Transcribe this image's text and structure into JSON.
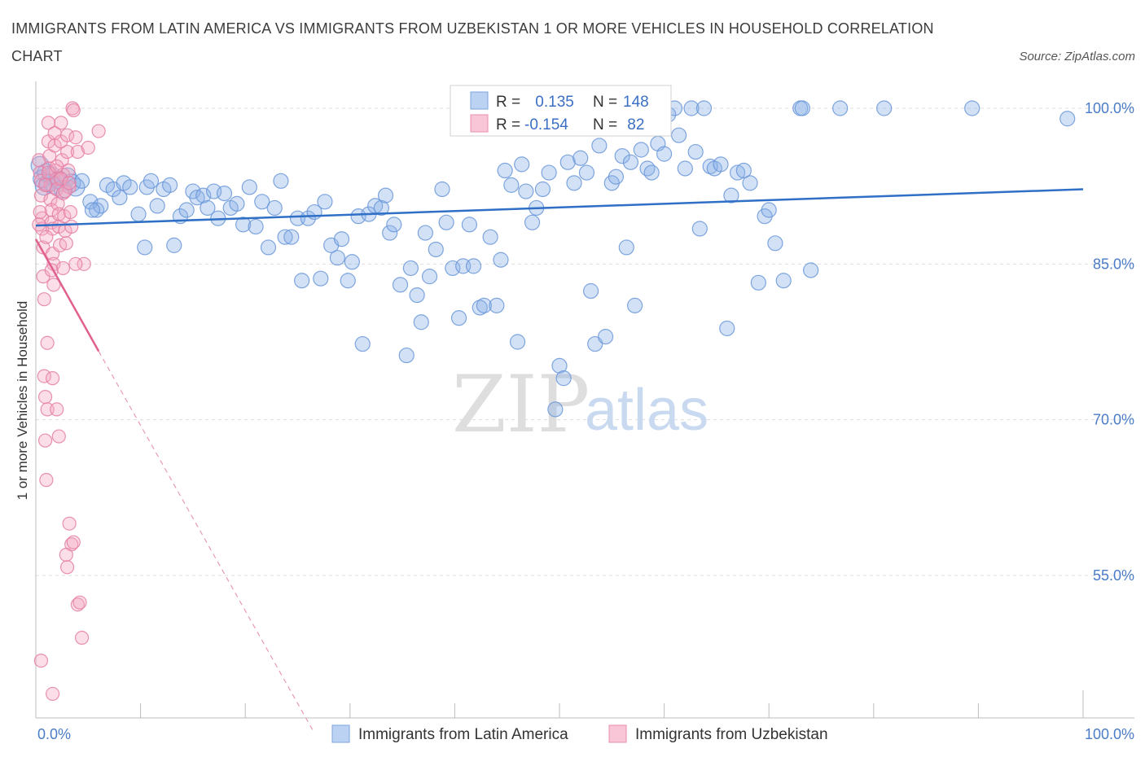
{
  "title": "IMMIGRANTS FROM LATIN AMERICA VS IMMIGRANTS FROM UZBEKISTAN 1 OR MORE VEHICLES IN HOUSEHOLD CORRELATION CHART",
  "source": "Source: ZipAtlas.com",
  "watermark": {
    "zip": "ZIP",
    "atlas": "atlas"
  },
  "chart_data": {
    "type": "scatter",
    "title": "IMMIGRANTS FROM LATIN AMERICA VS IMMIGRANTS FROM UZBEKISTAN 1 OR MORE VEHICLES IN HOUSEHOLD CORRELATION CHART",
    "xlabel": "",
    "ylabel": "1 or more Vehicles in Household",
    "xlim": [
      0,
      100
    ],
    "ylim": [
      40,
      100
    ],
    "x_tick_labels": [
      "0.0%",
      "100.0%"
    ],
    "y_ticks": [
      {
        "value": 100,
        "label": "100.0%"
      },
      {
        "value": 85,
        "label": "85.0%"
      },
      {
        "value": 70,
        "label": "70.0%"
      },
      {
        "value": 55,
        "label": "55.0%"
      }
    ],
    "stats": [
      {
        "r_label": "R =",
        "r": " 0.135",
        "n_label": "N =",
        "n": "148"
      },
      {
        "r_label": "R =",
        "r": "-0.154",
        "n_label": "N =",
        "n": " 82"
      }
    ],
    "series": [
      {
        "name": "Immigrants from Latin America",
        "color": "#8ab0e8",
        "stroke": "#6a96d8",
        "trend": {
          "x": [
            0,
            100
          ],
          "y": [
            88.7,
            92.2
          ],
          "color": "#2f6fc6"
        },
        "points": [
          [
            0.4,
            94.5
          ],
          [
            0.6,
            93.2
          ],
          [
            0.8,
            92.5
          ],
          [
            1,
            93.8
          ],
          [
            1.2,
            92.8
          ],
          [
            1.5,
            93.5
          ],
          [
            1.8,
            92.6
          ],
          [
            2.2,
            93.1
          ],
          [
            2.6,
            92.2
          ],
          [
            3,
            93.4
          ],
          [
            3.4,
            92.8
          ],
          [
            3.8,
            92.4
          ],
          [
            4.4,
            93.0
          ],
          [
            5.2,
            91.0
          ],
          [
            5.8,
            90.2
          ],
          [
            6.2,
            90.6
          ],
          [
            6.8,
            92.6
          ],
          [
            7.4,
            92.2
          ],
          [
            8,
            91.4
          ],
          [
            8.4,
            92.8
          ],
          [
            9,
            92.4
          ],
          [
            9.8,
            89.8
          ],
          [
            10.4,
            86.6
          ],
          [
            10.6,
            92.4
          ],
          [
            11,
            93.0
          ],
          [
            11.6,
            90.6
          ],
          [
            12.2,
            92.2
          ],
          [
            12.8,
            92.6
          ],
          [
            13.2,
            86.8
          ],
          [
            13.8,
            89.6
          ],
          [
            14.4,
            90.2
          ],
          [
            15,
            92.0
          ],
          [
            15.4,
            91.4
          ],
          [
            16,
            91.6
          ],
          [
            16.4,
            90.4
          ],
          [
            17,
            92.0
          ],
          [
            17.4,
            89.4
          ],
          [
            18,
            91.8
          ],
          [
            18.6,
            90.4
          ],
          [
            19.2,
            90.8
          ],
          [
            19.8,
            88.8
          ],
          [
            20.4,
            92.4
          ],
          [
            21,
            88.6
          ],
          [
            21.6,
            91.0
          ],
          [
            22.2,
            86.6
          ],
          [
            22.8,
            90.4
          ],
          [
            23.4,
            93.0
          ],
          [
            23.8,
            87.6
          ],
          [
            24.4,
            87.6
          ],
          [
            25,
            89.4
          ],
          [
            25.4,
            83.4
          ],
          [
            26,
            89.4
          ],
          [
            26.6,
            90.0
          ],
          [
            27.2,
            83.6
          ],
          [
            27.6,
            91.0
          ],
          [
            28.2,
            86.8
          ],
          [
            28.8,
            85.6
          ],
          [
            29.2,
            87.4
          ],
          [
            29.8,
            83.4
          ],
          [
            30.2,
            85.2
          ],
          [
            30.8,
            89.6
          ],
          [
            31.2,
            77.3
          ],
          [
            31.8,
            89.8
          ],
          [
            32.4,
            90.6
          ],
          [
            33.0,
            90.4
          ],
          [
            33.4,
            91.6
          ],
          [
            33.8,
            88.0
          ],
          [
            34.2,
            88.8
          ],
          [
            34.8,
            83.0
          ],
          [
            35.4,
            76.2
          ],
          [
            35.8,
            84.6
          ],
          [
            36.4,
            82.0
          ],
          [
            36.8,
            79.4
          ],
          [
            37.2,
            88.0
          ],
          [
            37.6,
            83.8
          ],
          [
            38.2,
            86.4
          ],
          [
            38.8,
            92.2
          ],
          [
            39.2,
            89.0
          ],
          [
            39.8,
            84.6
          ],
          [
            40.4,
            79.8
          ],
          [
            40.8,
            84.8
          ],
          [
            41.4,
            88.8
          ],
          [
            41.8,
            84.8
          ],
          [
            42.4,
            80.8
          ],
          [
            42.8,
            81.0
          ],
          [
            43.4,
            87.6
          ],
          [
            44,
            81.0
          ],
          [
            44.4,
            85.4
          ],
          [
            44.8,
            94.0
          ],
          [
            45.4,
            92.6
          ],
          [
            46,
            77.5
          ],
          [
            46.4,
            94.6
          ],
          [
            46.8,
            92.0
          ],
          [
            47.4,
            89.0
          ],
          [
            47.8,
            90.4
          ],
          [
            48.4,
            92.2
          ],
          [
            49,
            93.8
          ],
          [
            49.6,
            71.0
          ],
          [
            50,
            75.2
          ],
          [
            50.4,
            74.0
          ],
          [
            50.8,
            94.8
          ],
          [
            51.4,
            92.8
          ],
          [
            52,
            95.2
          ],
          [
            52.6,
            93.8
          ],
          [
            53,
            82.4
          ],
          [
            53.4,
            77.3
          ],
          [
            53.8,
            96.4
          ],
          [
            54.4,
            78.0
          ],
          [
            55,
            92.8
          ],
          [
            55.4,
            93.4
          ],
          [
            56,
            95.4
          ],
          [
            56.4,
            86.6
          ],
          [
            56.8,
            94.8
          ],
          [
            57.2,
            81.0
          ],
          [
            57.8,
            96.0
          ],
          [
            58.4,
            94.2
          ],
          [
            58.8,
            93.8
          ],
          [
            59.4,
            96.6
          ],
          [
            60,
            95.6
          ],
          [
            60.4,
            99.4
          ],
          [
            61,
            100
          ],
          [
            61.4,
            97.4
          ],
          [
            62,
            94.2
          ],
          [
            62.6,
            100
          ],
          [
            63,
            95.8
          ],
          [
            63.4,
            88.4
          ],
          [
            63.8,
            100
          ],
          [
            64.4,
            94.4
          ],
          [
            64.8,
            94.2
          ],
          [
            65.4,
            94.6
          ],
          [
            66,
            78.8
          ],
          [
            66.4,
            91.6
          ],
          [
            67,
            93.8
          ],
          [
            67.6,
            94.0
          ],
          [
            68.2,
            92.8
          ],
          [
            69,
            83.2
          ],
          [
            69.6,
            89.6
          ],
          [
            70,
            90.2
          ],
          [
            70.6,
            87.0
          ],
          [
            71.4,
            83.4
          ],
          [
            73,
            100
          ],
          [
            73.2,
            100
          ],
          [
            74,
            84.4
          ],
          [
            76.8,
            100
          ],
          [
            81,
            100
          ],
          [
            89.4,
            100
          ],
          [
            98.5,
            99.0
          ],
          [
            5.4,
            90.2
          ]
        ]
      },
      {
        "name": "Immigrants from Uzbekistan",
        "color": "#f4a7c0",
        "stroke": "#e57ea3",
        "trend": {
          "x": [
            0,
            6
          ],
          "y": [
            87.4,
            76.6
          ],
          "color": "#e0608e"
        },
        "trend_extension": {
          "x": [
            6,
            26.5
          ],
          "y": [
            76.6,
            40
          ],
          "color": "#e89ab6"
        },
        "points": [
          [
            0.3,
            95.0
          ],
          [
            0.4,
            93.8
          ],
          [
            0.5,
            93.0
          ],
          [
            0.5,
            91.6
          ],
          [
            0.6,
            89.4
          ],
          [
            0.6,
            88.4
          ],
          [
            0.7,
            86.6
          ],
          [
            0.7,
            83.8
          ],
          [
            0.8,
            81.6
          ],
          [
            0.8,
            74.2
          ],
          [
            0.9,
            72.2
          ],
          [
            0.9,
            68.0
          ],
          [
            1.0,
            64.2
          ],
          [
            1.1,
            77.4
          ],
          [
            1.1,
            71.0
          ],
          [
            1.2,
            98.6
          ],
          [
            1.2,
            96.8
          ],
          [
            1.3,
            95.4
          ],
          [
            1.3,
            94.2
          ],
          [
            1.4,
            92.6
          ],
          [
            1.4,
            91.2
          ],
          [
            1.5,
            90.2
          ],
          [
            1.5,
            89.0
          ],
          [
            1.6,
            88.4
          ],
          [
            1.6,
            86.0
          ],
          [
            1.7,
            85.0
          ],
          [
            1.7,
            83.0
          ],
          [
            1.8,
            97.6
          ],
          [
            1.8,
            96.4
          ],
          [
            1.9,
            94.0
          ],
          [
            2.0,
            93.2
          ],
          [
            2.0,
            92.2
          ],
          [
            2.1,
            90.8
          ],
          [
            2.2,
            89.8
          ],
          [
            2.2,
            88.6
          ],
          [
            2.3,
            86.8
          ],
          [
            2.4,
            98.6
          ],
          [
            2.4,
            96.8
          ],
          [
            2.5,
            95.0
          ],
          [
            2.6,
            93.6
          ],
          [
            2.6,
            91.8
          ],
          [
            2.7,
            89.6
          ],
          [
            2.8,
            88.2
          ],
          [
            2.9,
            87.0
          ],
          [
            3.0,
            97.4
          ],
          [
            3.0,
            95.8
          ],
          [
            3.1,
            94.0
          ],
          [
            3.2,
            92.4
          ],
          [
            3.3,
            90.0
          ],
          [
            3.4,
            88.6
          ],
          [
            3.5,
            100
          ],
          [
            3.6,
            99.8
          ],
          [
            3.8,
            97.2
          ],
          [
            4.0,
            95.8
          ],
          [
            3.2,
            60.0
          ],
          [
            3.4,
            58.0
          ],
          [
            2.9,
            57.0
          ],
          [
            3.0,
            55.8
          ],
          [
            2.2,
            68.4
          ],
          [
            2.0,
            71.0
          ],
          [
            1.6,
            74.0
          ],
          [
            4.0,
            52.2
          ],
          [
            4.2,
            52.4
          ],
          [
            4.4,
            49.0
          ],
          [
            0.5,
            46.8
          ],
          [
            1.6,
            43.6
          ],
          [
            3.6,
            58.2
          ],
          [
            4.6,
            85.0
          ],
          [
            3.8,
            85.0
          ],
          [
            2.8,
            92.0
          ],
          [
            0.4,
            90.0
          ],
          [
            0.9,
            92.6
          ],
          [
            1.2,
            93.8
          ],
          [
            2.0,
            94.4
          ],
          [
            2.4,
            93.2
          ],
          [
            3.2,
            92.8
          ],
          [
            1.0,
            87.6
          ],
          [
            2.6,
            84.6
          ],
          [
            0.3,
            88.8
          ],
          [
            1.5,
            84.4
          ],
          [
            6.0,
            97.8
          ],
          [
            5.0,
            96.2
          ]
        ]
      }
    ],
    "legend": [
      "Immigrants from Latin America",
      "Immigrants from Uzbekistan"
    ]
  }
}
